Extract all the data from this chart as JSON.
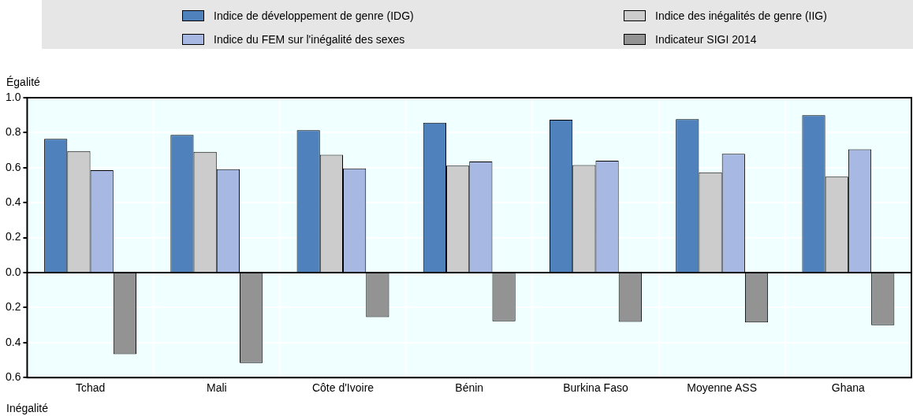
{
  "chart_data": {
    "type": "bar",
    "categories": [
      "Tchad",
      "Mali",
      "Côte d'Ivoire",
      "Bénin",
      "Burkina Faso",
      "Moyenne ASS",
      "Ghana"
    ],
    "series": [
      {
        "name": "Indice de développement de genre (IDG)",
        "color": "#4f81bd",
        "values": [
          0.765,
          0.787,
          0.814,
          0.857,
          0.874,
          0.877,
          0.9
        ]
      },
      {
        "name": "Indice des inégalités de genre (IIG)",
        "color": "#cccccc",
        "values": [
          0.695,
          0.69,
          0.673,
          0.612,
          0.615,
          0.573,
          0.548
        ]
      },
      {
        "name": "Indice du FEM sur l'inégalité des sexes",
        "color": "#a7b8e2",
        "values": [
          0.586,
          0.591,
          0.596,
          0.635,
          0.64,
          0.679,
          0.705
        ]
      },
      {
        "name": "Indicateur SIGI 2014",
        "color": "#939393",
        "values": [
          -0.466,
          -0.517,
          -0.255,
          -0.278,
          -0.281,
          -0.285,
          -0.301
        ]
      }
    ],
    "ylim": [
      -0.6,
      1.0
    ],
    "yticks": [
      {
        "value": -0.6,
        "label": "0.6"
      },
      {
        "value": -0.4,
        "label": "0.4"
      },
      {
        "value": -0.2,
        "label": "0.2"
      },
      {
        "value": 0,
        "label": "0.0"
      },
      0.2,
      0.4,
      0.6,
      0.8,
      {
        "value": 1.0,
        "label": "1.0"
      }
    ],
    "annotations": [
      "Égalité",
      "Inégalité"
    ],
    "grid": true,
    "legend": "top"
  }
}
